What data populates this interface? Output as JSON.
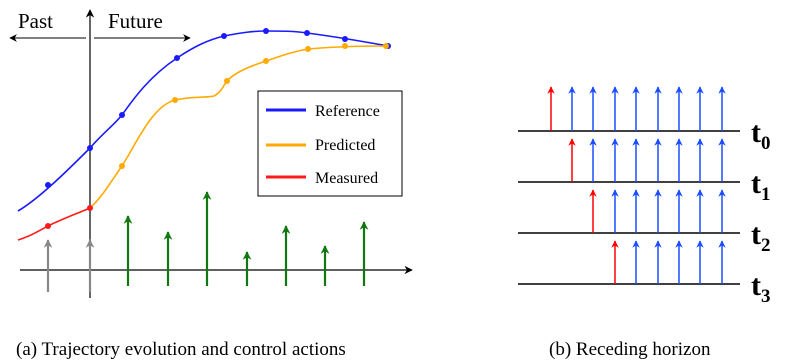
{
  "colors": {
    "reference": "#1a1aff",
    "predicted": "#ffaa00",
    "measured": "#ff1a1a",
    "past_input": "#888888",
    "future_input": "#117711",
    "horizon_red": "#ff0000",
    "horizon_blue": "#1a4dff"
  },
  "left": {
    "label_past": "Past",
    "label_future": "Future",
    "legend": [
      {
        "key": "reference",
        "label": "Reference"
      },
      {
        "key": "predicted",
        "label": "Predicted"
      },
      {
        "key": "measured",
        "label": "Measured"
      }
    ],
    "caption": "(a)  Trajectory evolution and control actions"
  },
  "right": {
    "caption": "(b)  Receding horizon",
    "rows": [
      {
        "label": "t",
        "sub": "0"
      },
      {
        "label": "t",
        "sub": "1"
      },
      {
        "label": "t",
        "sub": "2"
      },
      {
        "label": "t",
        "sub": "3"
      }
    ]
  }
}
